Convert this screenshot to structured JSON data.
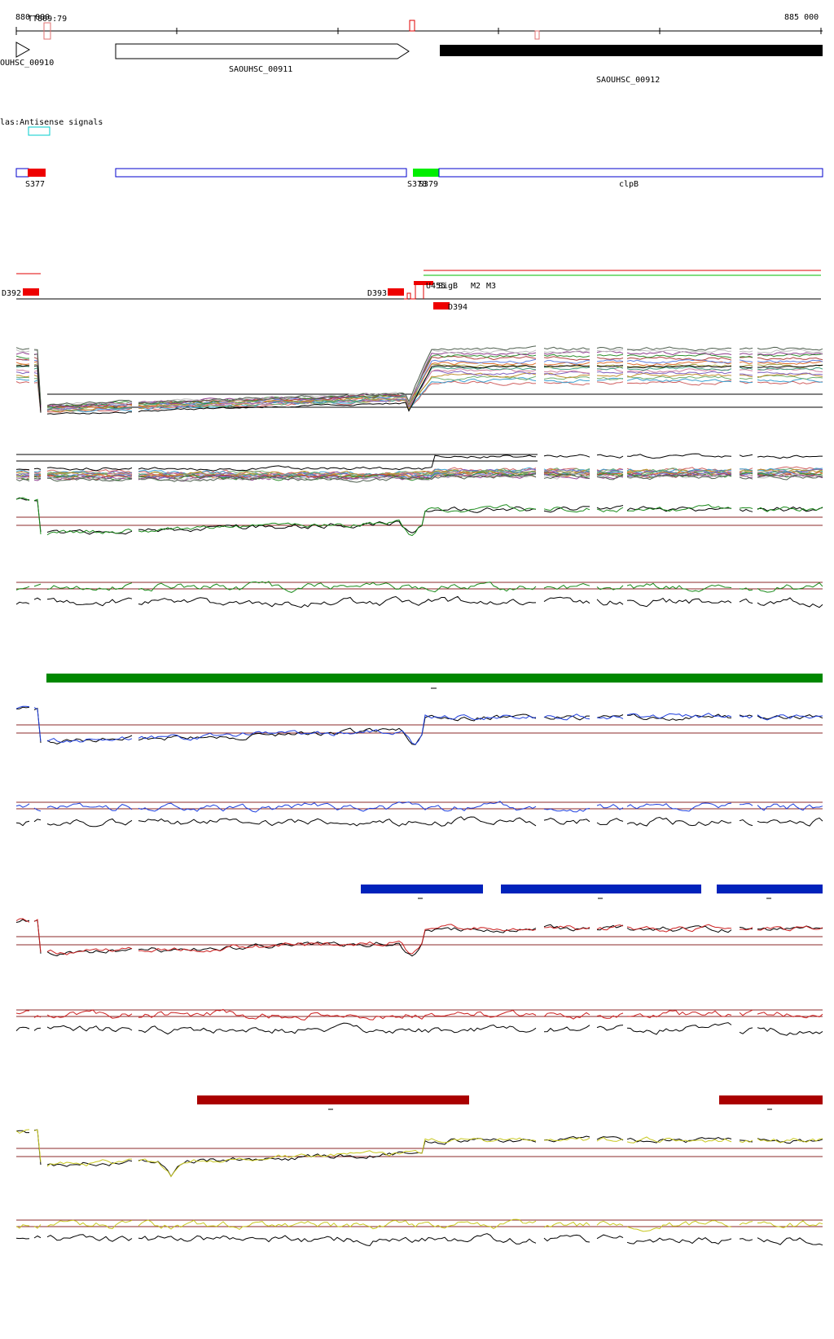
{
  "coords": {
    "start": "880 000",
    "end": "885 000"
  },
  "labels": {
    "tt_marker": "TT809:79",
    "class_label": "las:Antisense signals"
  },
  "genes": [
    {
      "id": "SAOUHSC_00910",
      "label": "OUHSC_00910",
      "strand": "+"
    },
    {
      "id": "SAOUHSC_00911",
      "label": "SAOUHSC_00911",
      "strand": "+"
    },
    {
      "id": "SAOUHSC_00912",
      "label": "SAOUHSC_00912",
      "strand": "-"
    }
  ],
  "segments": [
    {
      "label": "S377",
      "color": "#e00000"
    },
    {
      "label": "S378",
      "color": "#00dd00"
    },
    {
      "label": "S379",
      "color": "#00dd00"
    },
    {
      "label": "clpB",
      "color": "#0000cc"
    }
  ],
  "signals": [
    {
      "label": "D392"
    },
    {
      "label": "D393"
    },
    {
      "label": "D394"
    },
    {
      "label": "U455"
    },
    {
      "label": "SigB"
    },
    {
      "label": "M2"
    },
    {
      "label": "M3"
    }
  ],
  "condition_bars": {
    "green": "#008800",
    "blue": "#0022bb",
    "red": "#aa0000"
  },
  "track_colors": {
    "line_black": "#000000",
    "line_green": "#1a8a1a",
    "line_blue": "#1f3fdd",
    "line_red": "#cc2020",
    "line_yellow": "#c8c820",
    "threshold": "#8b2a2a"
  }
}
